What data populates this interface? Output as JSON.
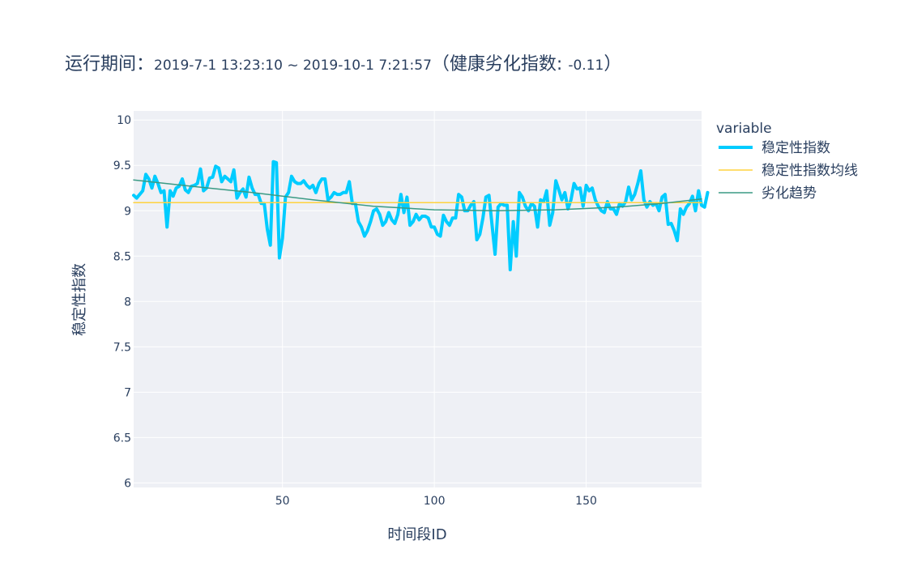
{
  "title": {
    "prefix": "运行期间：",
    "period": "2019-7-1 13:23:10 ~ 2019-10-1 7:21:57",
    "health_label": "（健康劣化指数: ",
    "health_value": "-0.11",
    "health_suffix": "）"
  },
  "chart_data": {
    "type": "line",
    "xlabel": "时间段ID",
    "ylabel": "稳定性指数",
    "xlim": [
      1,
      188
    ],
    "ylim": [
      5.95,
      10.1
    ],
    "x_ticks": [
      50,
      100,
      150
    ],
    "y_ticks": [
      6,
      6.5,
      7,
      7.5,
      8,
      8.5,
      9,
      9.5,
      10
    ],
    "y_tick_labels": [
      "6",
      "6.5",
      "7",
      "7.5",
      "8",
      "8.5",
      "9",
      "9.5",
      "10"
    ],
    "grid": true,
    "legend": {
      "title": "variable",
      "placement": "right",
      "entries": [
        "稳定性指数",
        "稳定性指数均线",
        "劣化趋势"
      ]
    },
    "colors": {
      "index": "#00ccff",
      "mean": "#ffd23f",
      "trend": "#3a9a84",
      "plot_bg": "#eef0f5"
    },
    "series": [
      {
        "name": "稳定性指数",
        "x_start": 1,
        "values": [
          9.17,
          9.14,
          9.18,
          9.22,
          9.4,
          9.35,
          9.25,
          9.38,
          9.3,
          9.2,
          9.22,
          8.82,
          9.22,
          9.16,
          9.25,
          9.27,
          9.35,
          9.23,
          9.2,
          9.27,
          9.28,
          9.3,
          9.46,
          9.22,
          9.25,
          9.36,
          9.37,
          9.49,
          9.47,
          9.32,
          9.38,
          9.35,
          9.32,
          9.45,
          9.14,
          9.2,
          9.24,
          9.15,
          9.37,
          9.25,
          9.18,
          9.18,
          9.08,
          9.08,
          8.8,
          8.62,
          9.54,
          9.53,
          8.48,
          8.7,
          9.15,
          9.2,
          9.38,
          9.32,
          9.3,
          9.3,
          9.33,
          9.28,
          9.25,
          9.28,
          9.2,
          9.3,
          9.35,
          9.35,
          9.12,
          9.15,
          9.2,
          9.18,
          9.18,
          9.2,
          9.2,
          9.32,
          9.08,
          9.08,
          8.88,
          8.82,
          8.72,
          8.78,
          8.88,
          9.0,
          9.02,
          8.96,
          8.84,
          8.88,
          8.98,
          8.9,
          8.86,
          8.96,
          9.18,
          8.98,
          9.15,
          8.84,
          8.88,
          8.96,
          8.9,
          8.94,
          8.94,
          8.92,
          8.82,
          8.82,
          8.74,
          8.72,
          8.95,
          8.88,
          8.84,
          8.92,
          8.92,
          9.18,
          9.15,
          9.0,
          9.0,
          9.06,
          9.1,
          8.68,
          8.74,
          8.92,
          9.15,
          9.17,
          8.85,
          8.52,
          9.04,
          9.08,
          9.06,
          9.06,
          8.35,
          8.88,
          8.5,
          9.2,
          9.15,
          9.05,
          9.0,
          9.08,
          9.05,
          8.82,
          9.12,
          9.1,
          9.22,
          8.84,
          8.98,
          9.33,
          9.23,
          9.12,
          9.2,
          9.02,
          9.12,
          9.3,
          9.24,
          9.25,
          9.05,
          9.28,
          9.22,
          9.25,
          9.12,
          9.05,
          9.0,
          8.98,
          9.1,
          9.02,
          9.02,
          8.96,
          9.08,
          9.05,
          9.1,
          9.26,
          9.12,
          9.18,
          9.3,
          9.44,
          9.12,
          9.04,
          9.1,
          9.06,
          9.08,
          9.0,
          9.15,
          9.18,
          8.85,
          8.86,
          8.78,
          8.67,
          9.02,
          8.96,
          9.04,
          9.08,
          9.16,
          9.0,
          9.22,
          9.06,
          9.04,
          9.2
        ]
      },
      {
        "name": "稳定性指数均线",
        "x": [
          1,
          188
        ],
        "values": [
          9.09,
          9.09
        ]
      },
      {
        "name": "劣化趋势",
        "x": [
          1,
          20,
          40,
          60,
          80,
          100,
          120,
          140,
          160,
          175,
          188
        ],
        "values": [
          9.34,
          9.27,
          9.2,
          9.12,
          9.05,
          9.01,
          9.0,
          9.01,
          9.04,
          9.08,
          9.13
        ]
      }
    ]
  }
}
